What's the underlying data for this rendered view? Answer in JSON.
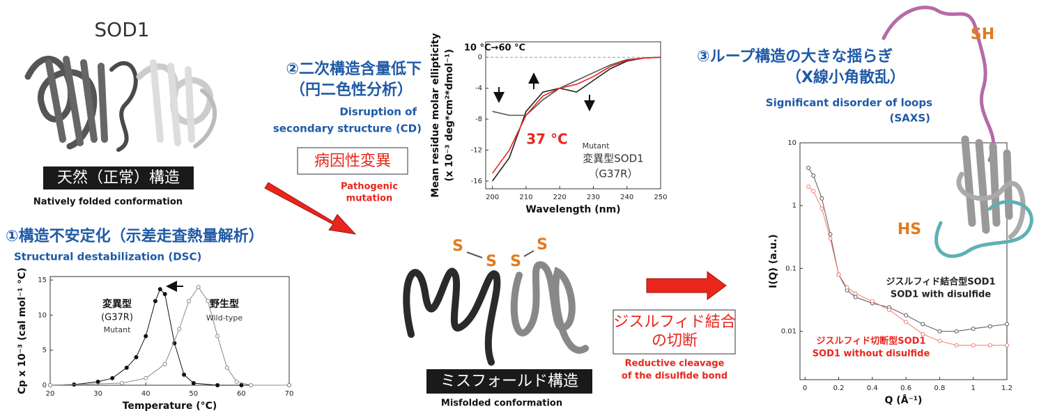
{
  "labels": {
    "sod1": "SOD1",
    "native": "天然（正常）構造",
    "native_en": "Natively folded conformation",
    "dsc_jp": "①構造不安定化（示差走査熱量解析）",
    "dsc_en": "Structural destabilization (DSC)",
    "cd_jp": [
      "②二次構造含量低下",
      "（円二色性分析）"
    ],
    "cd_en": [
      "Disruption of",
      "secondary structure (CD)"
    ],
    "mutation_jp": "病因性変異",
    "mutation_en": [
      "Pathogenic",
      "mutation"
    ],
    "s": [
      "S",
      "S",
      "S",
      "S"
    ],
    "misfold": "ミスフォールド構造",
    "misfold_en": "Misfolded conformation",
    "cleavage_jp": [
      "ジスルフィド結合",
      "の切断"
    ],
    "cleavage_en": [
      "Reductive cleavage",
      "of the disulfide bond"
    ],
    "saxs_jp": [
      "③ループ構造の大きな揺らぎ",
      "（X線小角散乱）"
    ],
    "saxs_en": [
      "Significant disorder of loops",
      "(SAXS)"
    ],
    "sh": "SH",
    "hs": "HS"
  },
  "chart_data": [
    {
      "type": "line",
      "xlabel": "Temperature (°C)",
      "ylabel": [
        "Cp x 10⁻³ (cal mol⁻¹ °C)"
      ],
      "xlim": [
        20,
        70
      ],
      "xticks": [
        20,
        30,
        40,
        50,
        60,
        70
      ],
      "ylim": [
        0,
        15.5
      ],
      "yticks": [
        0,
        5,
        10,
        15
      ],
      "series": [
        {
          "color": "#111111",
          "marker": "filled",
          "x": [
            20,
            25,
            30,
            33,
            36,
            38,
            40,
            42,
            43,
            44,
            46,
            48,
            50,
            55,
            60,
            70
          ],
          "values": [
            0,
            0.1,
            0.5,
            1,
            2.5,
            4,
            7,
            12,
            13.7,
            13,
            6,
            1.5,
            0.3,
            0,
            0,
            0
          ]
        },
        {
          "color": "#888888",
          "marker": "open",
          "x": [
            20,
            35,
            40,
            44,
            47,
            49,
            51,
            53,
            55,
            57,
            59,
            62,
            70
          ],
          "values": [
            0,
            0.3,
            1,
            3,
            8,
            12,
            14,
            12,
            7,
            2.5,
            0.5,
            0,
            0
          ]
        }
      ],
      "annotations": [
        {
          "text": "変異型",
          "color": "#111111"
        },
        {
          "text": "(G37R)",
          "color": "#111111"
        },
        {
          "text": "Mutant",
          "color": "#333333"
        },
        {
          "text": "野生型",
          "color": "#111111"
        },
        {
          "text": "Wild-type",
          "color": "#333333"
        }
      ]
    },
    {
      "type": "line",
      "xlabel": "Wavelength (nm)",
      "ylabel": [
        "Mean residue molar ellipticity",
        "(x 10⁻³ deg*cm²*dmol⁻¹)"
      ],
      "xlim": [
        198,
        250
      ],
      "xticks": [
        200,
        210,
        220,
        230,
        240,
        250
      ],
      "ylim": [
        -17,
        2
      ],
      "yticks": [
        0,
        -4,
        -8,
        -12,
        -16
      ],
      "zero_line": true,
      "x": [
        200,
        205,
        210,
        215,
        220,
        225,
        230,
        235,
        240,
        245,
        250
      ],
      "series": [
        {
          "color": "#222222",
          "marker": "none",
          "values": [
            -16,
            -13,
            -7,
            -4.5,
            -4,
            -4.5,
            -3,
            -1.5,
            -0.5,
            -0.1,
            0
          ]
        },
        {
          "color": "#555555",
          "marker": "none",
          "values": [
            -7,
            -7.5,
            -7.5,
            -5.5,
            -4,
            -3,
            -2,
            -1,
            -0.3,
            -0.1,
            0
          ]
        },
        {
          "color": "#e8261c",
          "marker": "none",
          "values": [
            -15,
            -12,
            -7.5,
            -5,
            -4,
            -3.5,
            -2.5,
            -1.2,
            -0.4,
            -0.1,
            0
          ]
        }
      ],
      "annotations": [
        {
          "text": "10 °C→60 °C",
          "color": "#111111"
        },
        {
          "text": "37 °C",
          "color": "#e8261c"
        },
        {
          "text": "Mutant",
          "color": "#333333"
        },
        {
          "text": "変異型SOD1",
          "color": "#333333"
        },
        {
          "text": "（G37R）",
          "color": "#333333"
        }
      ]
    },
    {
      "type": "line",
      "xlabel": "Q (Å⁻¹)",
      "ylabel": [
        "I(Q) (a.u.)"
      ],
      "log_y": true,
      "xlim": [
        -0.03,
        1.2
      ],
      "xticks": [
        0,
        0.2,
        0.4,
        0.6,
        0.8,
        1,
        1.2
      ],
      "ylim": [
        0.0017,
        10
      ],
      "yticks": [
        0.01,
        0.1,
        1,
        10
      ],
      "x": [
        0.02,
        0.05,
        0.1,
        0.15,
        0.2,
        0.25,
        0.3,
        0.4,
        0.5,
        0.6,
        0.7,
        0.8,
        0.9,
        1.0,
        1.1,
        1.2
      ],
      "series": [
        {
          "color": "#555555",
          "marker": "open",
          "values": [
            4,
            3,
            1.3,
            0.35,
            0.08,
            0.045,
            0.035,
            0.028,
            0.024,
            0.018,
            0.013,
            0.01,
            0.01,
            0.011,
            0.012,
            0.013
          ]
        },
        {
          "color": "#f07a70",
          "marker": "open",
          "values": [
            2,
            1.7,
            0.9,
            0.3,
            0.08,
            0.05,
            0.04,
            0.03,
            0.022,
            0.014,
            0.009,
            0.007,
            0.006,
            0.006,
            0.006,
            0.006
          ]
        }
      ],
      "annotations": [
        {
          "text": "ジスルフィド結合型SOD1",
          "color": "#222222"
        },
        {
          "text": "SOD1 with disulfide",
          "color": "#222222"
        },
        {
          "text": "ジスルフィド切断型SOD1",
          "color": "#e8261c"
        },
        {
          "text": "SOD1 without disulfide",
          "color": "#e8261c"
        }
      ]
    }
  ]
}
